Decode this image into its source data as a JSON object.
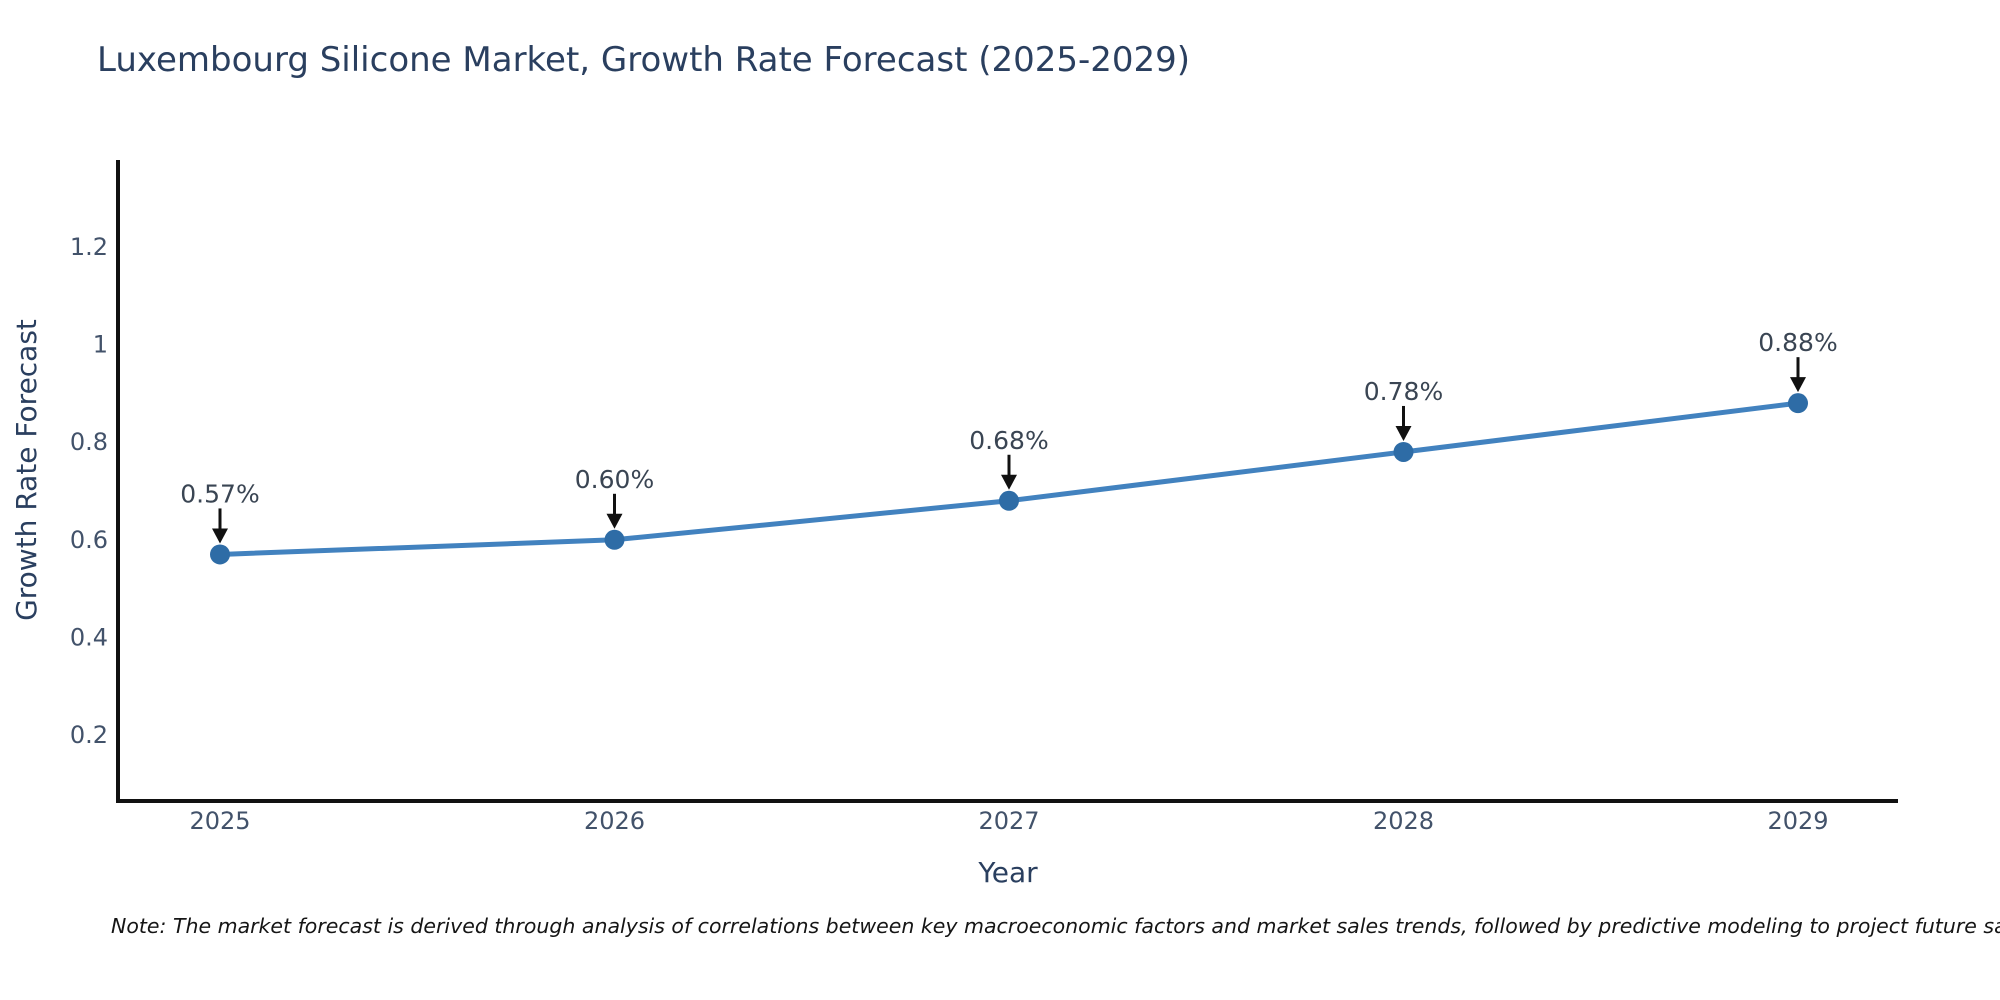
{
  "title": "Luxembourg Silicone Market, Growth Rate Forecast (2025-2029)",
  "note": "Note: The market forecast is derived through analysis of correlations between key macroeconomic factors and market sales trends, followed by predictive modeling to project future sales",
  "chart_data": {
    "type": "line",
    "title": "Luxembourg Silicone Market, Growth Rate Forecast (2025-2029)",
    "x": [
      2025,
      2026,
      2027,
      2028,
      2029
    ],
    "x_tick_labels": [
      "2025",
      "2026",
      "2027",
      "2028",
      "2029"
    ],
    "series": [
      {
        "name": "Growth Rate Forecast",
        "values": [
          0.57,
          0.6,
          0.68,
          0.78,
          0.88
        ]
      }
    ],
    "point_labels": [
      "0.57%",
      "0.60%",
      "0.68%",
      "0.78%",
      "0.88%"
    ],
    "xlabel": "Year",
    "ylabel": "Growth Rate Forecast",
    "yticks": [
      0.2,
      0.4,
      0.6,
      0.8,
      1,
      1.2
    ],
    "ytick_labels": [
      "0.2",
      "0.4",
      "0.6",
      "0.8",
      "1",
      "1.2"
    ],
    "ylim": [
      0.06,
      1.38
    ],
    "grid": false,
    "legend": false,
    "colors": {
      "line": "#4282bf",
      "marker": "#2e6ca6",
      "axis_line": "#111111",
      "annotation_arrow": "#111111",
      "annotation_text": "#3a4553",
      "tick_text": "#42526a",
      "title_text": "#2a3f5f"
    }
  }
}
